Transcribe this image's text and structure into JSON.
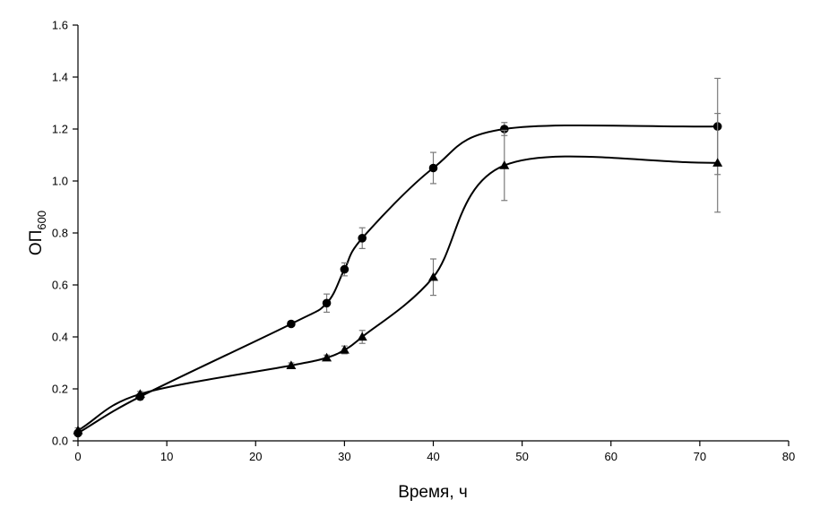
{
  "chart_data": {
    "type": "scatter",
    "xlabel": "Время, ч",
    "ylabel": "ОП",
    "ylabel_subscript": "600",
    "xlim": [
      0,
      80
    ],
    "ylim": [
      0,
      1.6
    ],
    "xticks": [
      "0",
      "10",
      "20",
      "30",
      "40",
      "50",
      "60",
      "70",
      "80"
    ],
    "yticks": [
      "0.0",
      "0.2",
      "0.4",
      "0.6",
      "0.8",
      "1.0",
      "1.2",
      "1.4",
      "1.6"
    ],
    "xtick_values": [
      0,
      10,
      20,
      30,
      40,
      50,
      60,
      70,
      80
    ],
    "ytick_values": [
      0,
      0.2,
      0.4,
      0.6,
      0.8,
      1.0,
      1.2,
      1.4,
      1.6
    ],
    "grid": false,
    "line_style": "smoothed",
    "series": [
      {
        "marker": "circle",
        "color": "#000000",
        "x": [
          0,
          7,
          24,
          28,
          30,
          32,
          40,
          48,
          72
        ],
        "y": [
          0.03,
          0.17,
          0.45,
          0.53,
          0.66,
          0.78,
          1.05,
          1.2,
          1.21
        ],
        "error": [
          0.01,
          0.01,
          0.01,
          0.035,
          0.025,
          0.04,
          0.06,
          0.025,
          0.185
        ]
      },
      {
        "marker": "triangle",
        "color": "#000000",
        "x": [
          0,
          7,
          24,
          28,
          30,
          32,
          40,
          48,
          72
        ],
        "y": [
          0.04,
          0.18,
          0.29,
          0.32,
          0.35,
          0.4,
          0.63,
          1.06,
          1.07
        ],
        "error": [
          0.01,
          0.01,
          0.01,
          0.01,
          0.015,
          0.025,
          0.07,
          0.135,
          0.19
        ]
      }
    ]
  }
}
